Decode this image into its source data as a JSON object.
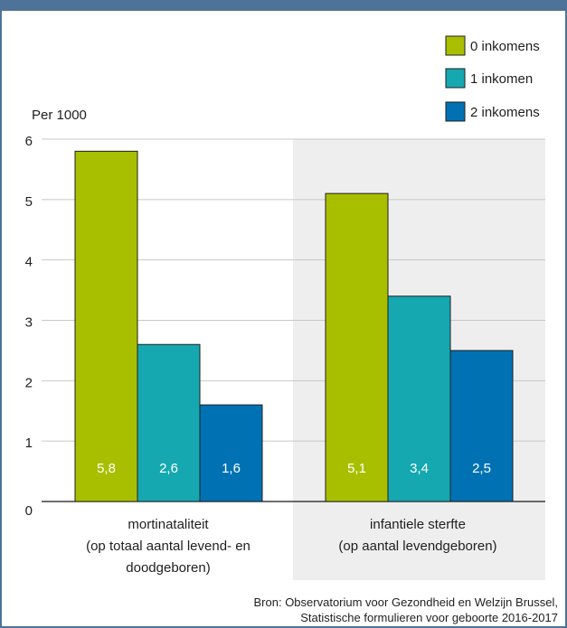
{
  "chart_data": {
    "type": "bar",
    "ylabel": "Per 1000",
    "ylim": [
      0,
      6
    ],
    "y_ticks": [
      "0",
      "1",
      "2",
      "3",
      "4",
      "5",
      "6"
    ],
    "categories": [
      {
        "line1": "mortinataliteit",
        "line2": "(op totaal aantal levend- en",
        "line3": "doodgeboren)"
      },
      {
        "line1": "infantiele sterfte",
        "line2": "(op aantal levendgeboren)",
        "line3": ""
      }
    ],
    "series": [
      {
        "name": "0 inkomens",
        "color": "#a8bf00",
        "values": [
          5.8,
          5.1
        ],
        "labels": [
          "5,8",
          "5,1"
        ]
      },
      {
        "name": "1 inkomen",
        "color": "#16a8b0",
        "values": [
          2.6,
          3.4
        ],
        "labels": [
          "2,6",
          "3,4"
        ]
      },
      {
        "name": "2 inkomens",
        "color": "#0072b4",
        "values": [
          1.6,
          2.5
        ],
        "labels": [
          "1,6",
          "2,5"
        ]
      }
    ],
    "grid": true,
    "legend_position": "top-right"
  },
  "source": {
    "line1": "Bron: Observatorium voor Gezondheid en Welzijn Brussel,",
    "line2": "Statistische formulieren voor geboorte 2016-2017"
  },
  "colors": {
    "frame": "#4f7398",
    "top_band": "#4f7398",
    "gridline": "#c8c8c8",
    "axis": "#1f1f1f",
    "shaded_group": "#eeeeee"
  }
}
